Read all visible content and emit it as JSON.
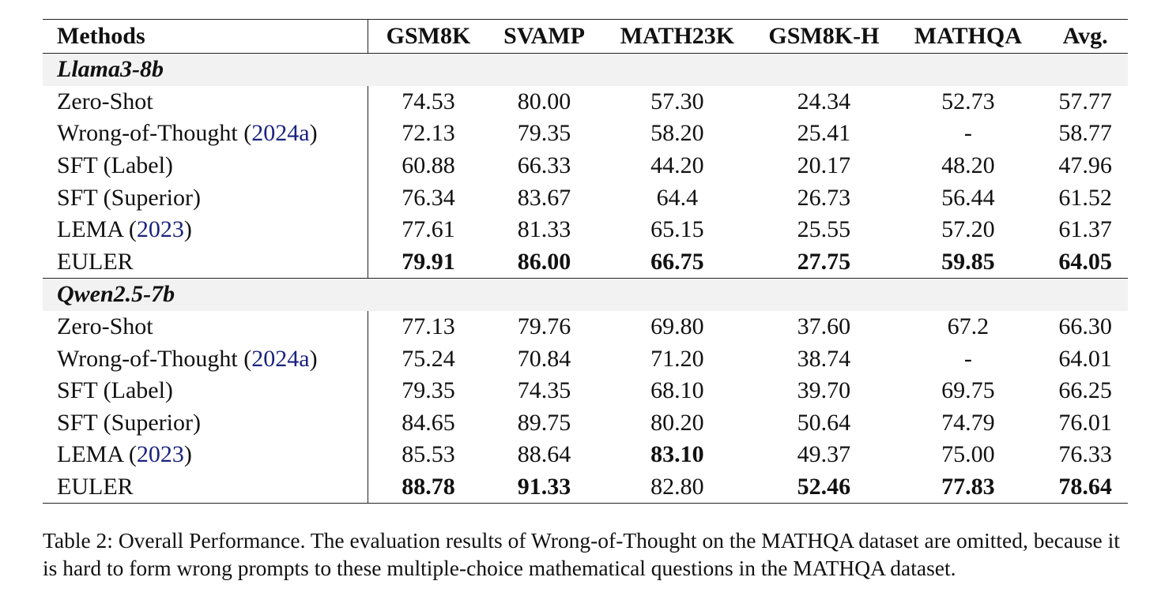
{
  "table": {
    "headers": [
      "Methods",
      "GSM8K",
      "SVAMP",
      "MATH23K",
      "GSM8K-H",
      "MATHQA",
      "Avg."
    ],
    "groups": [
      {
        "name": "Llama3-8b",
        "rows": [
          {
            "method": "Zero-Shot",
            "cite": "",
            "values": [
              "74.53",
              "80.00",
              "57.30",
              "24.34",
              "52.73",
              "57.77"
            ],
            "bold": [
              false,
              false,
              false,
              false,
              false,
              false
            ]
          },
          {
            "method": "Wrong-of-Thought",
            "cite": "2024a",
            "values": [
              "72.13",
              "79.35",
              "58.20",
              "25.41",
              "-",
              "58.77"
            ],
            "bold": [
              false,
              false,
              false,
              false,
              false,
              false
            ]
          },
          {
            "method": "SFT (Label)",
            "cite": "",
            "values": [
              "60.88",
              "66.33",
              "44.20",
              "20.17",
              "48.20",
              "47.96"
            ],
            "bold": [
              false,
              false,
              false,
              false,
              false,
              false
            ]
          },
          {
            "method": "SFT (Superior)",
            "cite": "",
            "values": [
              "76.34",
              "83.67",
              "64.4",
              "26.73",
              "56.44",
              "61.52"
            ],
            "bold": [
              false,
              false,
              false,
              false,
              false,
              false
            ]
          },
          {
            "method": "LEMA",
            "cite": "2023",
            "values": [
              "77.61",
              "81.33",
              "65.15",
              "25.55",
              "57.20",
              "61.37"
            ],
            "bold": [
              false,
              false,
              false,
              false,
              false,
              false
            ]
          },
          {
            "method": "EULER",
            "cite": "",
            "values": [
              "79.91",
              "86.00",
              "66.75",
              "27.75",
              "59.85",
              "64.05"
            ],
            "bold": [
              true,
              true,
              true,
              true,
              true,
              true
            ]
          }
        ]
      },
      {
        "name": "Qwen2.5-7b",
        "rows": [
          {
            "method": "Zero-Shot",
            "cite": "",
            "values": [
              "77.13",
              "79.76",
              "69.80",
              "37.60",
              "67.2",
              "66.30"
            ],
            "bold": [
              false,
              false,
              false,
              false,
              false,
              false
            ]
          },
          {
            "method": "Wrong-of-Thought",
            "cite": "2024a",
            "values": [
              "75.24",
              "70.84",
              "71.20",
              "38.74",
              "-",
              "64.01"
            ],
            "bold": [
              false,
              false,
              false,
              false,
              false,
              false
            ]
          },
          {
            "method": "SFT (Label)",
            "cite": "",
            "values": [
              "79.35",
              "74.35",
              "68.10",
              "39.70",
              "69.75",
              "66.25"
            ],
            "bold": [
              false,
              false,
              false,
              false,
              false,
              false
            ]
          },
          {
            "method": "SFT (Superior)",
            "cite": "",
            "values": [
              "84.65",
              "89.75",
              "80.20",
              "50.64",
              "74.79",
              "76.01"
            ],
            "bold": [
              false,
              false,
              false,
              false,
              false,
              false
            ]
          },
          {
            "method": "LEMA",
            "cite": "2023",
            "values": [
              "85.53",
              "88.64",
              "83.10",
              "49.37",
              "75.00",
              "76.33"
            ],
            "bold": [
              false,
              false,
              true,
              false,
              false,
              false
            ]
          },
          {
            "method": "EULER",
            "cite": "",
            "values": [
              "88.78",
              "91.33",
              "82.80",
              "52.46",
              "77.83",
              "78.64"
            ],
            "bold": [
              true,
              true,
              false,
              true,
              true,
              true
            ]
          }
        ]
      }
    ]
  },
  "caption": "Table 2: Overall Performance. The evaluation results of Wrong-of-Thought on the MATHQA dataset are omitted, because it is hard to form wrong prompts to these multiple-choice mathematical questions in the MATHQA dataset.",
  "colors": {
    "citation": "#1a237e",
    "group_background": "#f2f2f2"
  }
}
